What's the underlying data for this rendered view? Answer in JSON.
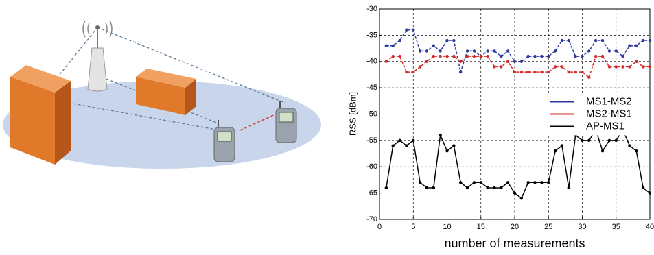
{
  "chart_data": {
    "type": "line",
    "xlabel": "number of measurements",
    "ylabel": "RSS [dBm]",
    "x": [
      1,
      2,
      3,
      4,
      5,
      6,
      7,
      8,
      9,
      10,
      11,
      12,
      13,
      14,
      15,
      16,
      17,
      18,
      19,
      20,
      21,
      22,
      23,
      24,
      25,
      26,
      27,
      28,
      29,
      30,
      31,
      32,
      33,
      34,
      35,
      36,
      37,
      38,
      39,
      40
    ],
    "series": [
      {
        "name": "MS1-MS2",
        "color": "#2b3a9c",
        "values": [
          -37,
          -37,
          -36,
          -34,
          -34,
          -38,
          -38,
          -37,
          -38,
          -36,
          -36,
          -42,
          -38,
          -38,
          -39,
          -38,
          -38,
          -39,
          -38,
          -40,
          -40,
          -39,
          -39,
          -39,
          -39,
          -38,
          -36,
          -36,
          -39,
          -39,
          -38,
          -36,
          -36,
          -38,
          -38,
          -39,
          -37,
          -37,
          -36,
          -36
        ]
      },
      {
        "name": "MS2-MS1",
        "color": "#d42a2a",
        "values": [
          -40,
          -39,
          -39,
          -42,
          -42,
          -41,
          -40,
          -39,
          -39,
          -39,
          -39,
          -40,
          -39,
          -39,
          -39,
          -39,
          -41,
          -41,
          -40,
          -42,
          -42,
          -42,
          -42,
          -42,
          -42,
          -41,
          -41,
          -42,
          -42,
          -42,
          -43,
          -39,
          -39,
          -41,
          -41,
          -41,
          -41,
          -40,
          -41,
          -41
        ]
      },
      {
        "name": "AP-MS1",
        "color": "#000000",
        "values": [
          -64,
          -56,
          -55,
          -56,
          -55,
          -63,
          -64,
          -64,
          -54,
          -57,
          -56,
          -63,
          -64,
          -63,
          -63,
          -64,
          -64,
          -64,
          -63,
          -65,
          -66,
          -63,
          -63,
          -63,
          -63,
          -57,
          -56,
          -64,
          -54,
          -55,
          -55,
          -53,
          -57,
          -55,
          -55,
          -53,
          -56,
          -57,
          -64,
          -65
        ]
      }
    ],
    "xlim": [
      0,
      40
    ],
    "xticks": [
      0,
      5,
      10,
      15,
      20,
      25,
      30,
      35,
      40
    ],
    "ylim": [
      -70,
      -30
    ],
    "yticks": [
      -70,
      -65,
      -60,
      -55,
      -50,
      -45,
      -40,
      -35,
      -30
    ],
    "grid": true,
    "legend": "right"
  }
}
